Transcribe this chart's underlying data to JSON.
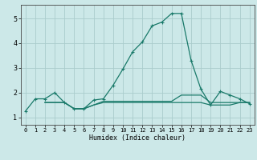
{
  "xlabel": "Humidex (Indice chaleur)",
  "background_color": "#cce8e8",
  "grid_color": "#aacccc",
  "line_color": "#1a7a6a",
  "xlim": [
    -0.5,
    23.5
  ],
  "ylim": [
    0.7,
    5.55
  ],
  "xticks": [
    0,
    1,
    2,
    3,
    4,
    5,
    6,
    7,
    8,
    9,
    10,
    11,
    12,
    13,
    14,
    15,
    16,
    17,
    18,
    19,
    20,
    21,
    22,
    23
  ],
  "yticks": [
    1,
    2,
    3,
    4,
    5
  ],
  "series1_x": [
    0,
    1,
    2,
    3,
    4,
    5,
    6,
    7,
    8,
    9,
    10,
    11,
    12,
    13,
    14,
    15,
    16,
    17,
    18,
    19,
    20,
    21,
    22,
    23
  ],
  "series1_y": [
    1.25,
    1.75,
    1.75,
    2.0,
    1.6,
    1.35,
    1.35,
    1.7,
    1.75,
    2.3,
    2.95,
    3.65,
    4.05,
    4.7,
    4.85,
    5.2,
    5.2,
    3.3,
    2.15,
    1.5,
    2.05,
    1.9,
    1.75,
    1.55
  ],
  "series2_x": [
    2,
    3,
    4,
    5,
    6,
    7,
    8,
    9,
    10,
    11,
    12,
    13,
    14,
    15,
    16,
    17,
    18,
    19,
    20,
    21,
    22,
    23
  ],
  "series2_y": [
    1.6,
    1.6,
    1.6,
    1.35,
    1.35,
    1.5,
    1.6,
    1.6,
    1.6,
    1.6,
    1.6,
    1.6,
    1.6,
    1.6,
    1.6,
    1.6,
    1.6,
    1.5,
    1.5,
    1.5,
    1.6,
    1.6
  ],
  "series3_x": [
    2,
    3,
    4,
    5,
    6,
    7,
    8,
    9,
    10,
    11,
    12,
    13,
    14,
    15,
    16,
    17,
    18,
    19,
    20,
    21,
    22,
    23
  ],
  "series3_y": [
    1.6,
    1.6,
    1.6,
    1.35,
    1.35,
    1.5,
    1.65,
    1.65,
    1.65,
    1.65,
    1.65,
    1.65,
    1.65,
    1.65,
    1.9,
    1.9,
    1.9,
    1.6,
    1.6,
    1.6,
    1.6,
    1.6
  ]
}
